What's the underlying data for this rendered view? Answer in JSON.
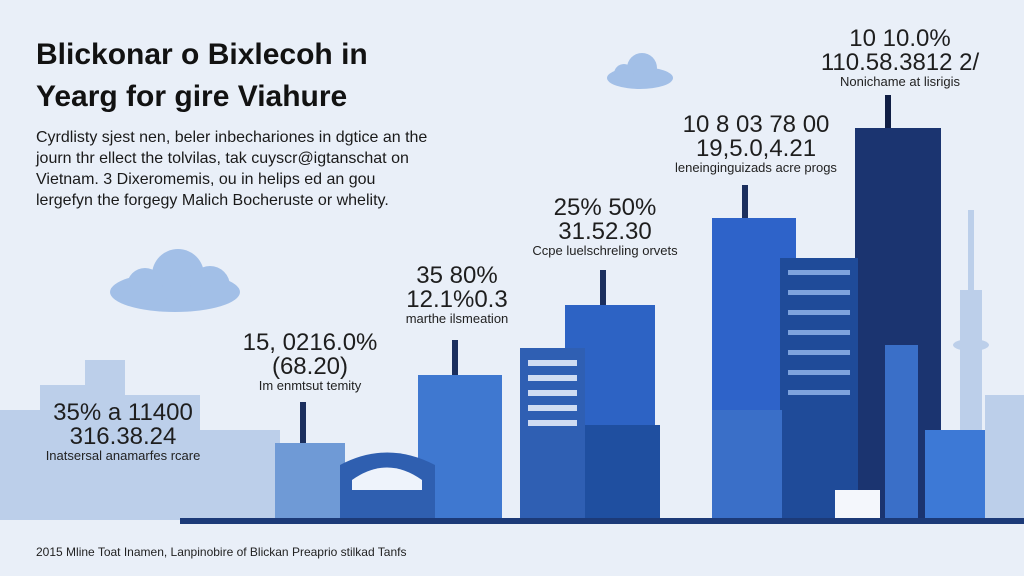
{
  "title": {
    "lines": [
      "Blickonar o Bixlecoh in",
      "Yearg for gire Viahure"
    ]
  },
  "intro": {
    "lines": [
      "Cyrdlisty sjest nen, beler inbechariones in dgtice an the",
      "journ thr ellect the tolvilas, tak cuyscr@igtanschat on",
      "Vietnam. 3 Dixeromemis, ou in helips ed an gou",
      "lergefyn the forgegy Malich Bocheruste or whelity."
    ]
  },
  "callouts": [
    {
      "lines": [
        "35% a 11400",
        "316.38.24"
      ],
      "caption": "Inatsersal anamarfes rcare"
    },
    {
      "lines": [
        "15, 0216.0%",
        "(68.20)"
      ],
      "caption": "Im enmtsut temity"
    },
    {
      "lines": [
        "35 80%",
        "12.1%0.3"
      ],
      "caption": "marthe ilsmeation"
    },
    {
      "lines": [
        "25% 50%",
        "31.52.30"
      ],
      "caption": "Ccpe luelschreling orvets"
    },
    {
      "lines": [
        "10 8 03 78 00",
        "19,5.0,4.21"
      ],
      "caption": "leneinginguizads acre progs"
    },
    {
      "lines": [
        "10 10.0%",
        "110.58.3812 2/"
      ],
      "caption": "Nonichame at lisrigis"
    }
  ],
  "footer": "2015 Mline Toat Inamen, Lanpinobire of Blickan Preaprio stilkad Tanfs"
}
